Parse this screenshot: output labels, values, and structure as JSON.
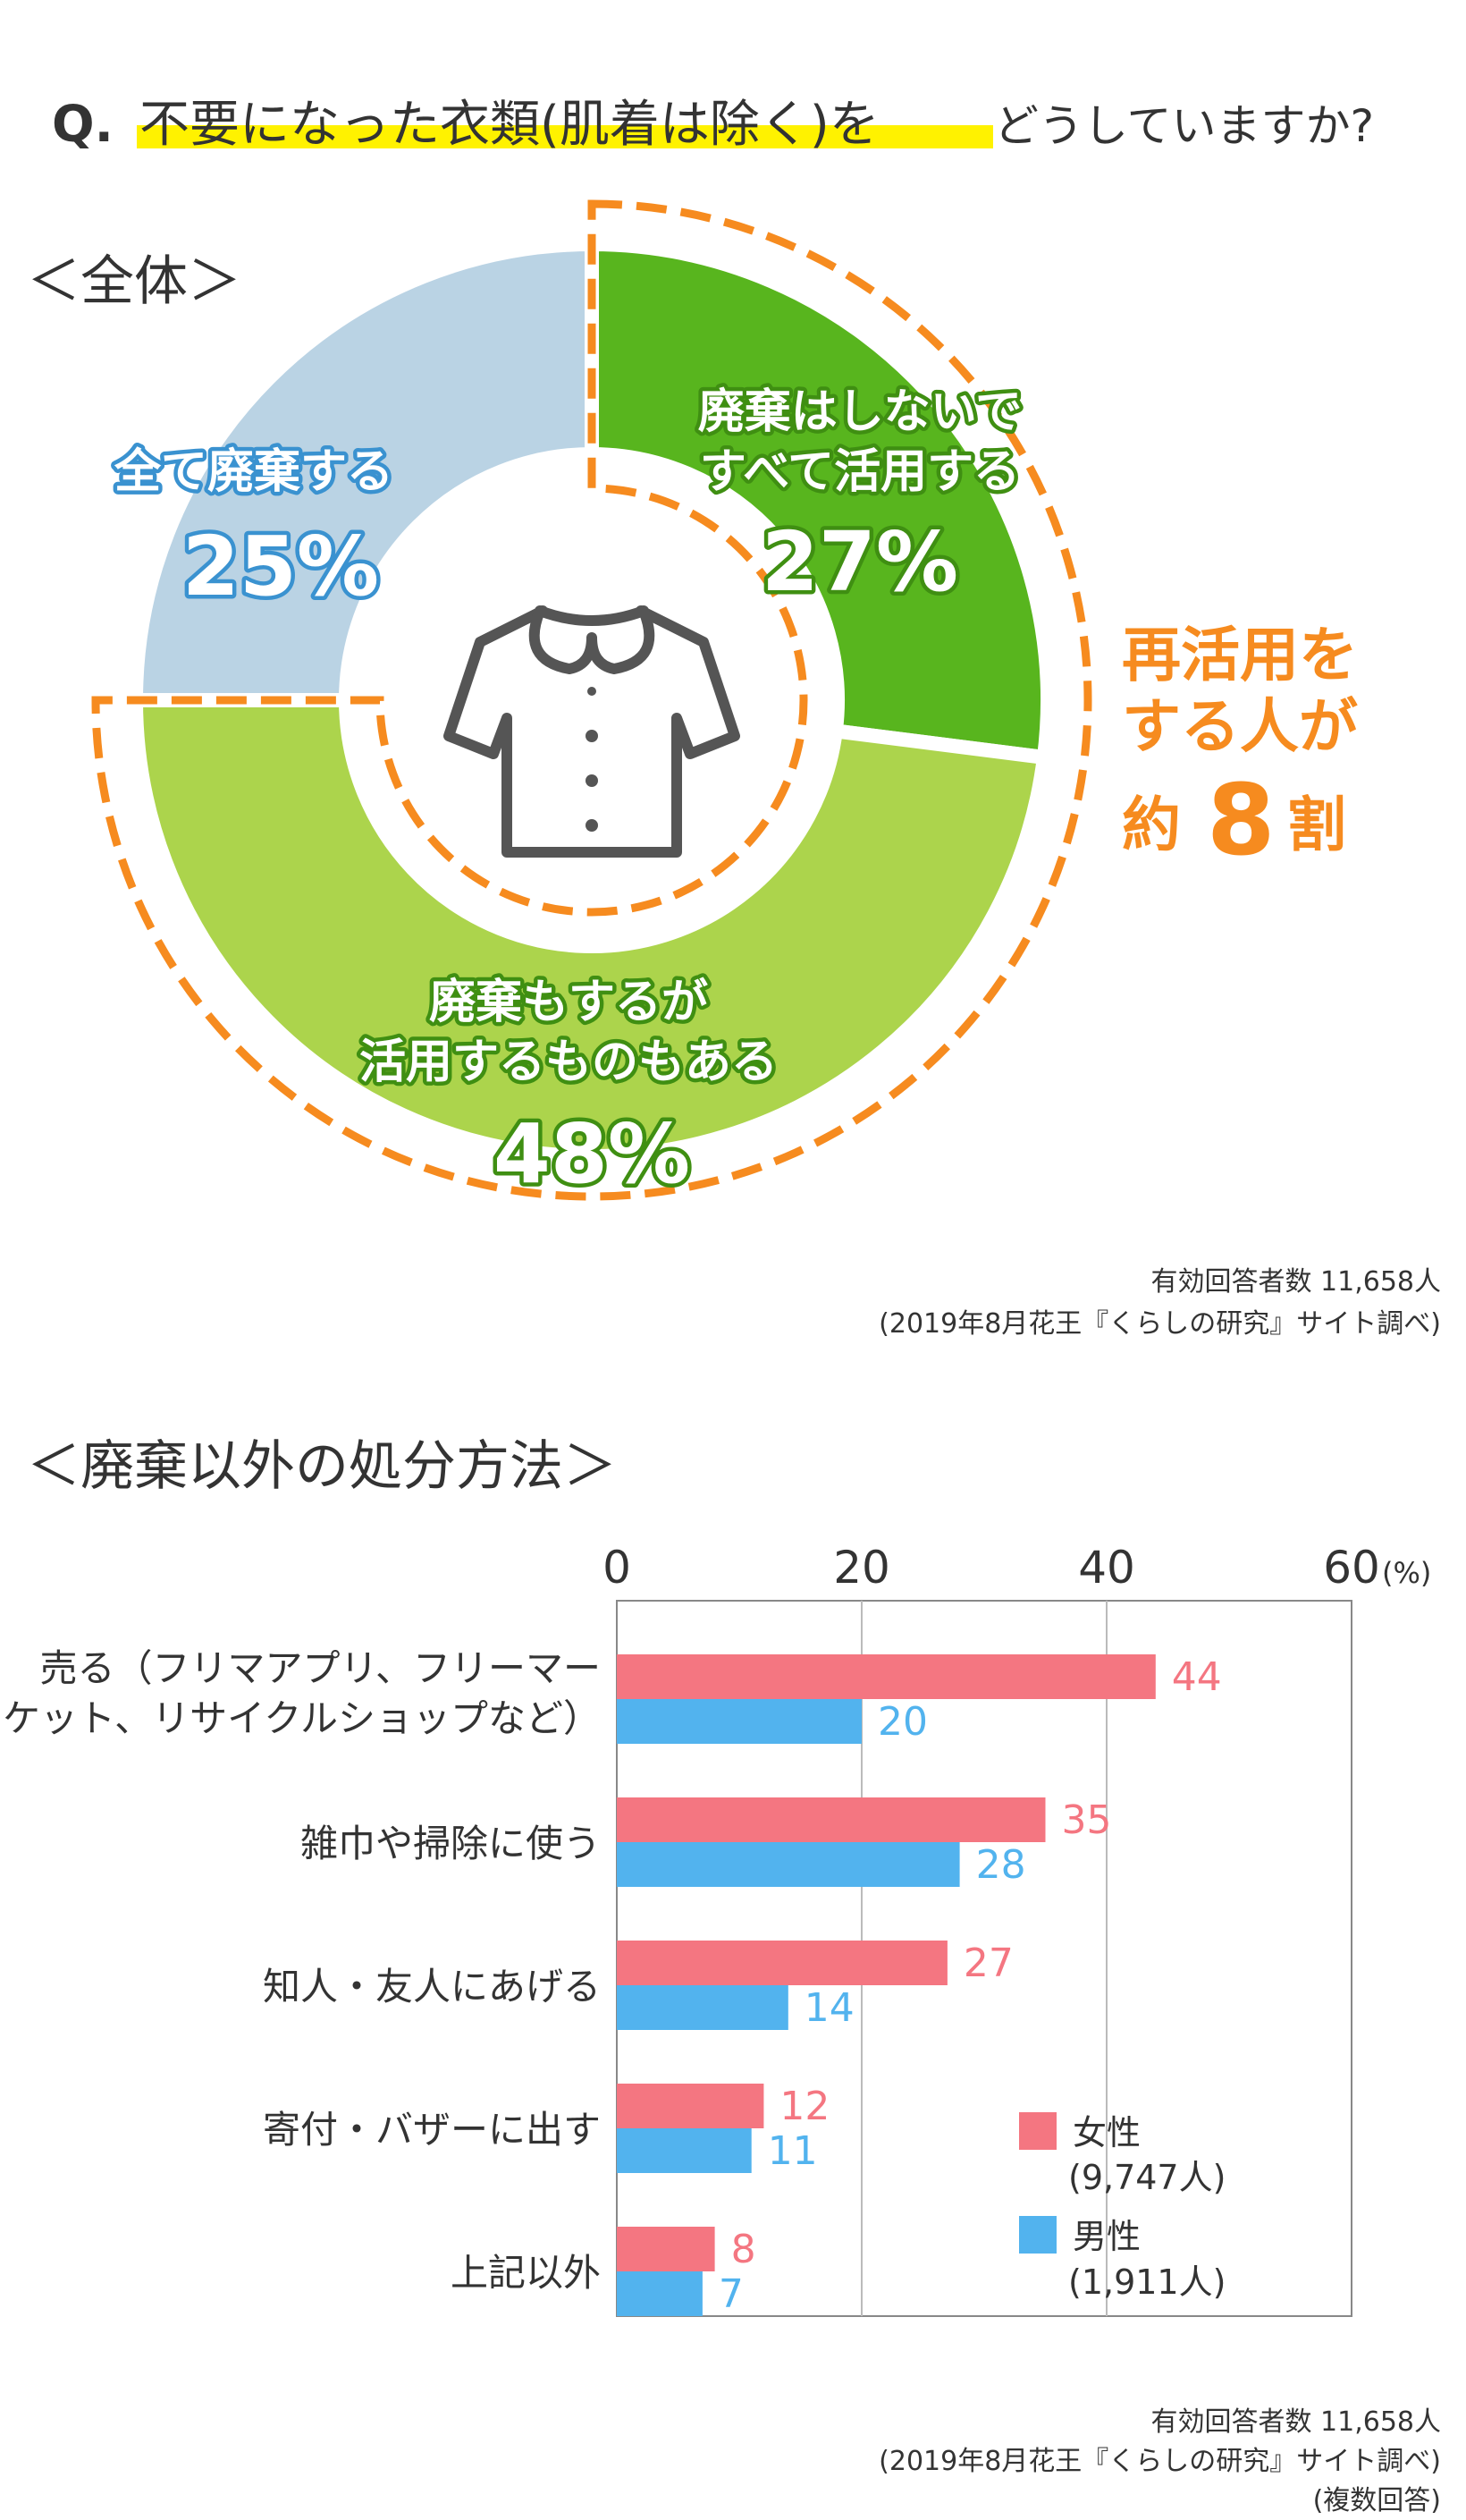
{
  "question": {
    "prefix": "Q.",
    "highlighted": "不要になった衣類(肌着は除く)を",
    "rest": "どうしていますか?"
  },
  "overall_heading": "＜全体＞",
  "callout": {
    "line1": "再活用を",
    "line2": "する人が",
    "line3_pre": "約",
    "line3_num": "8",
    "line3_post": "割"
  },
  "note1": {
    "line1": "有効回答者数 11,658人",
    "line2": "(2019年8月花王『くらしの研究』サイト調べ)"
  },
  "methods_heading": "＜廃棄以外の処分方法＞",
  "note2": {
    "line1": "有効回答者数 11,658人",
    "line2": "(2019年8月花王『くらしの研究』サイト調べ)",
    "line3": "(複数回答)"
  },
  "colors": {
    "green_dark": "#58b51e",
    "green_light": "#acd44c",
    "blue_light": "#bad3e4",
    "orange": "#f68b1f",
    "female": "#f47681",
    "male": "#52b3ee",
    "label_blue": "#3a92d0",
    "title_highlight": "#fff200"
  },
  "chart_data": [
    {
      "type": "pie",
      "subtype": "donut",
      "title": "＜全体＞",
      "slices": [
        {
          "label_line1": "廃棄はしないで",
          "label_line2": "すべて活用する",
          "value": 27,
          "display": "27%",
          "color": "#58b51e"
        },
        {
          "label_line1": "廃棄もするが",
          "label_line2": "活用するものもある",
          "value": 48,
          "display": "48%",
          "color": "#acd44c"
        },
        {
          "label_line1": "全て廃棄する",
          "label_line2": "",
          "value": 25,
          "display": "25%",
          "color": "#bad3e4"
        }
      ],
      "center_icon": "blouse-icon"
    },
    {
      "type": "bar",
      "orientation": "horizontal",
      "title": "＜廃棄以外の処分方法＞",
      "unit": "(%)",
      "xlim": [
        0,
        60
      ],
      "xticks": [
        0,
        20,
        40,
        60
      ],
      "grid": true,
      "categories": [
        [
          "売る（フリマアプリ、フリーマー",
          "ケット、リサイクルショップなど）"
        ],
        [
          "雑巾や掃除に使う"
        ],
        [
          "知人・友人にあげる"
        ],
        [
          "寄付・バザーに出す"
        ],
        [
          "上記以外"
        ]
      ],
      "series": [
        {
          "name": "女性",
          "legend_sub": "(9,747人)",
          "values": [
            44,
            35,
            27,
            12,
            8
          ],
          "color": "#f47681"
        },
        {
          "name": "男性",
          "legend_sub": "(1,911人)",
          "values": [
            20,
            28,
            14,
            11,
            7
          ],
          "color": "#52b3ee"
        }
      ],
      "legend_position": "bottom-right"
    }
  ]
}
